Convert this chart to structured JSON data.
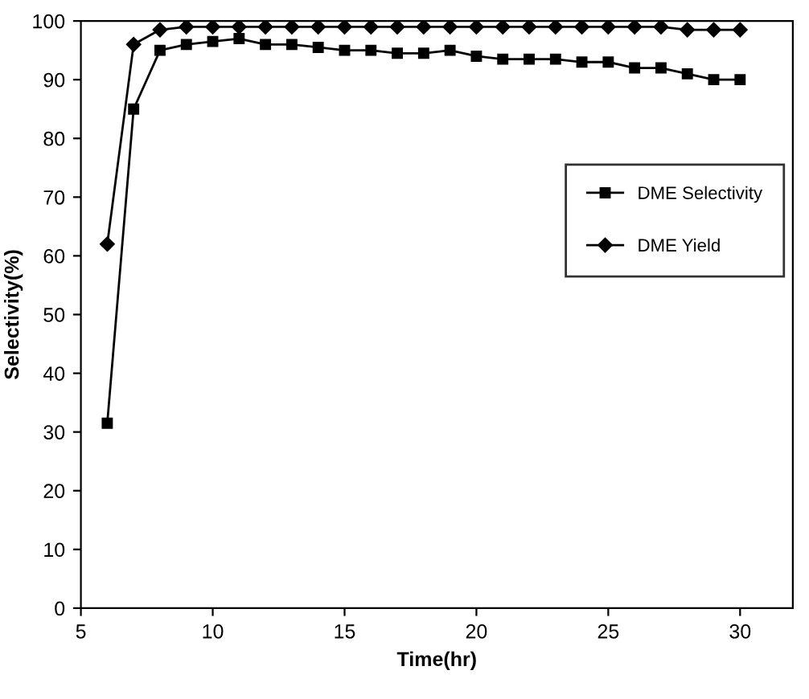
{
  "chart_data": {
    "type": "line",
    "xlabel": "Time(hr)",
    "ylabel": "Selectivity(%)",
    "x": [
      6,
      7,
      8,
      9,
      10,
      11,
      12,
      13,
      14,
      15,
      16,
      17,
      18,
      19,
      20,
      21,
      22,
      23,
      24,
      25,
      26,
      27,
      28,
      29,
      30
    ],
    "series": [
      {
        "name": "DME Selectivity",
        "color": "#000000",
        "marker": "square",
        "values": [
          31.5,
          85,
          95,
          96,
          96.5,
          97,
          96,
          96,
          95.5,
          95,
          95,
          94.5,
          94.5,
          95,
          94,
          93.5,
          93.5,
          93.5,
          93,
          93,
          92,
          92,
          91,
          90,
          90
        ]
      },
      {
        "name": "DME Yield",
        "color": "#000000",
        "marker": "diamond",
        "values": [
          62,
          96,
          98.5,
          99,
          99,
          99,
          99,
          99,
          99,
          99,
          99,
          99,
          99,
          99,
          99,
          99,
          99,
          99,
          99,
          99,
          99,
          99,
          98.5,
          98.5,
          98.5
        ]
      }
    ],
    "xlim": [
      5,
      32
    ],
    "ylim": [
      0,
      100
    ],
    "xticks": [
      5,
      10,
      15,
      20,
      25,
      30
    ],
    "yticks": [
      0,
      10,
      20,
      30,
      40,
      50,
      60,
      70,
      80,
      90,
      100
    ],
    "grid": false,
    "legend": "right",
    "line_style": "solid"
  }
}
